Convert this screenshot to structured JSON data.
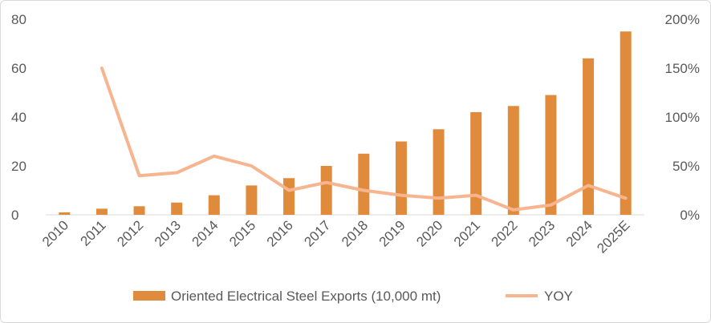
{
  "colors": {
    "bar": "#e08a3c",
    "line": "#f6b48f",
    "axis_text": "#595959"
  },
  "chart_data": {
    "type": "bar",
    "categories": [
      "2010",
      "2011",
      "2012",
      "2013",
      "2014",
      "2015",
      "2016",
      "2017",
      "2018",
      "2019",
      "2020",
      "2021",
      "2022",
      "2023",
      "2024",
      "2025E"
    ],
    "series": [
      {
        "name": "Oriented Electrical Steel Exports (10,000 mt)",
        "type": "bar",
        "axis": "left",
        "values": [
          1,
          2.5,
          3.5,
          5,
          8,
          12,
          15,
          20,
          25,
          30,
          35,
          42,
          44.5,
          49,
          64,
          75
        ]
      },
      {
        "name": "YOY",
        "type": "line",
        "axis": "right",
        "values": [
          null,
          150,
          40,
          43,
          60,
          50,
          25,
          33,
          25,
          20,
          17,
          20,
          5,
          10,
          30,
          17
        ]
      }
    ],
    "y_left": {
      "min": 0,
      "max": 80,
      "ticks": [
        "0",
        "20",
        "40",
        "60",
        "80"
      ]
    },
    "y_right": {
      "min": 0,
      "max": 200,
      "ticks": [
        "0%",
        "50%",
        "100%",
        "150%",
        "200%"
      ]
    },
    "grid": false,
    "legend": "bottom"
  }
}
